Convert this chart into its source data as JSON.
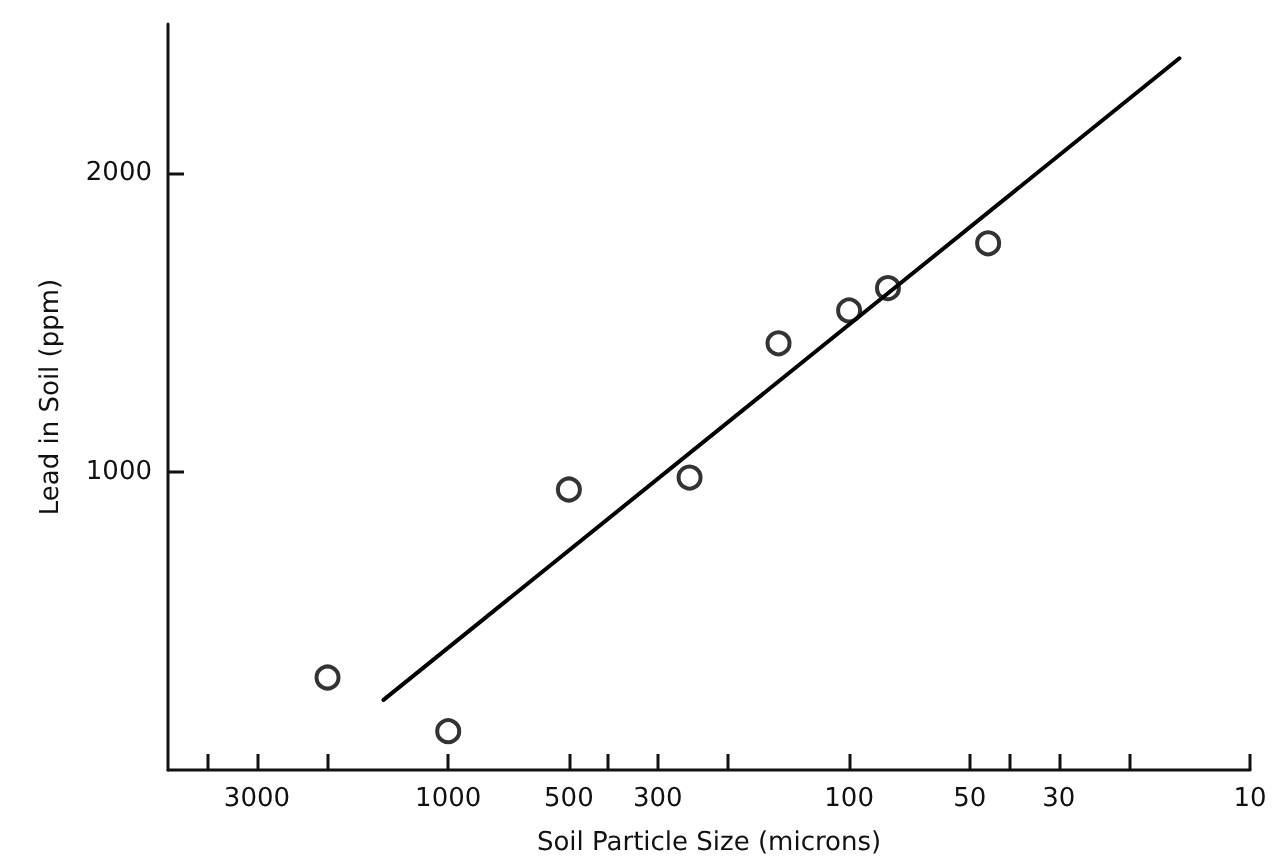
{
  "chart_data": {
    "type": "scatter",
    "xlabel": "Soil Particle Size (microns)",
    "ylabel": "Lead in Soil (ppm)",
    "log": "x",
    "xlim": [
      5000,
      10
    ],
    "ylim": [
      0,
      2500
    ],
    "xticks": [
      {
        "value": 4000,
        "label": null
      },
      3000,
      {
        "value": 2000,
        "label": null
      },
      1000,
      500,
      {
        "value": 400,
        "label": null
      },
      300,
      {
        "value": 200,
        "label": null
      },
      100,
      50,
      {
        "value": 40,
        "label": null
      },
      30,
      {
        "value": 20,
        "label": null
      },
      10
    ],
    "yticks": [
      1000,
      2000
    ],
    "grid": false,
    "series": [
      {
        "marker": "circle",
        "color": "#000000",
        "x": [
          2000,
          1000,
          500,
          250,
          150,
          100,
          80,
          45
        ],
        "values": [
          310,
          130,
          940,
          980,
          1430,
          1540,
          1615,
          1765
        ]
      },
      {
        "type": "line",
        "marker": "none",
        "line_style": "solid",
        "color": "#000000",
        "x": [
          1450,
          15
        ],
        "values": [
          235,
          2385
        ]
      }
    ]
  }
}
